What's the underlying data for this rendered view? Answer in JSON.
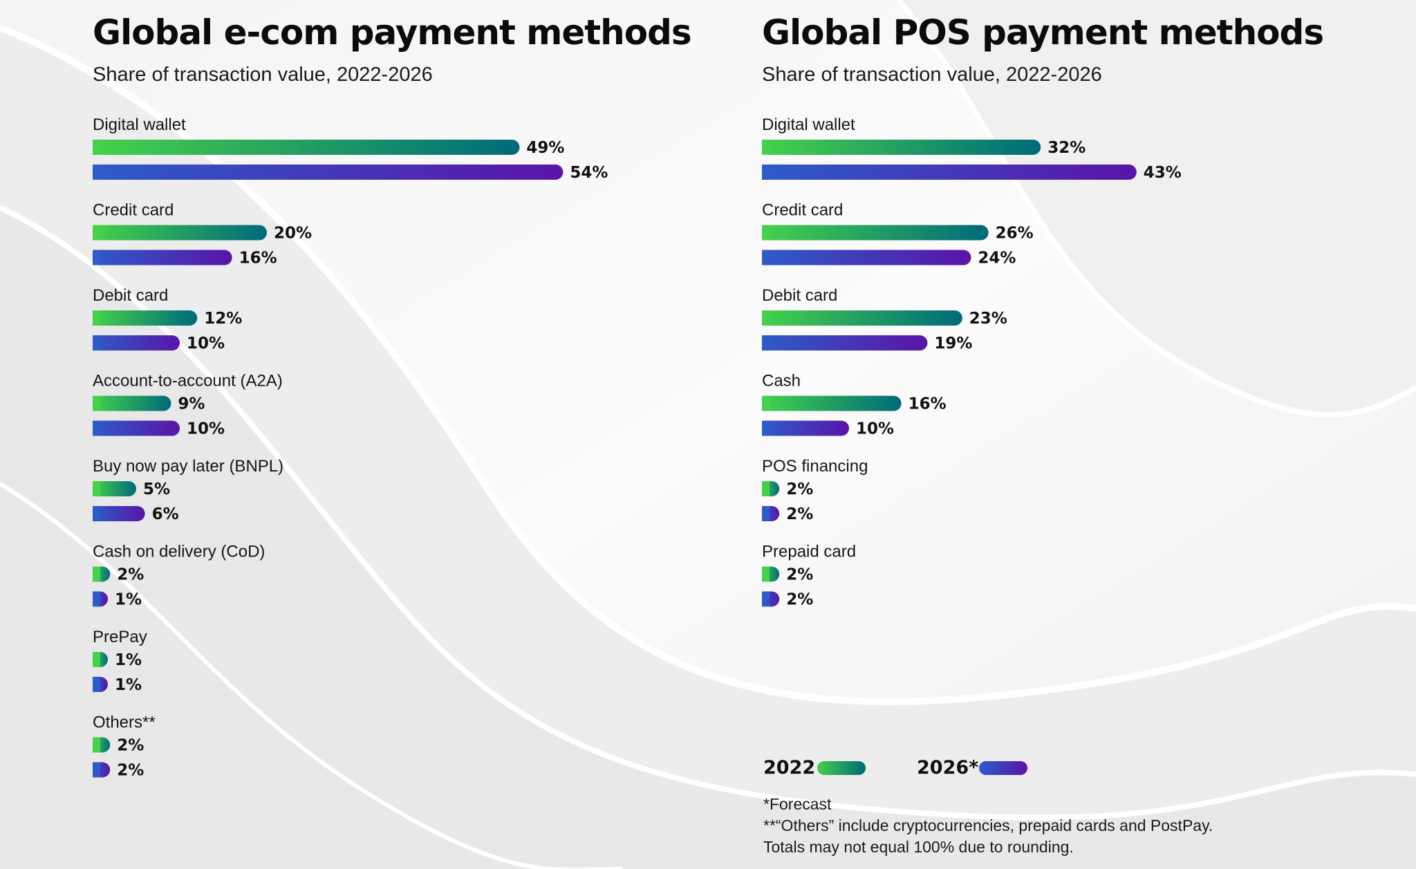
{
  "colors": {
    "y2022_start": "#45d14a",
    "y2022_end": "#006a7a",
    "y2026_start": "#2d5bc9",
    "y2026_end": "#5a14a8"
  },
  "legend": {
    "items": [
      {
        "label": "2022",
        "series": "2022"
      },
      {
        "label": "2026*",
        "series": "2026"
      }
    ]
  },
  "footnotes": [
    "*Forecast",
    "**“Others” include cryptocurrencies, prepaid cards and PostPay.",
    "Totals may not equal 100% due to rounding."
  ],
  "chart_data": [
    {
      "type": "bar",
      "orientation": "horizontal",
      "title": "Global e-com payment methods",
      "subtitle": "Share of transaction value, 2022-2026",
      "categories": [
        "Digital wallet",
        "Credit card",
        "Debit card",
        "Account-to-account (A2A)",
        "Buy now pay later (BNPL)",
        "Cash on delivery (CoD)",
        "PrePay",
        "Others**"
      ],
      "series": [
        {
          "name": "2022",
          "values": [
            49,
            20,
            12,
            9,
            5,
            2,
            1,
            2
          ],
          "labels": [
            "49%",
            "20%",
            "12%",
            "9%",
            "5%",
            "2%",
            "1%",
            "2%"
          ]
        },
        {
          "name": "2026*",
          "values": [
            54,
            16,
            10,
            10,
            6,
            1,
            1,
            2
          ],
          "labels": [
            "54%",
            "16%",
            "10%",
            "10%",
            "6%",
            "1%",
            "1%",
            "2%"
          ]
        }
      ],
      "unit": "%"
    },
    {
      "type": "bar",
      "orientation": "horizontal",
      "title": "Global POS payment methods",
      "subtitle": "Share of transaction value, 2022-2026",
      "categories": [
        "Digital wallet",
        "Credit card",
        "Debit card",
        "Cash",
        "POS financing",
        "Prepaid card"
      ],
      "series": [
        {
          "name": "2022",
          "values": [
            32,
            26,
            23,
            16,
            2,
            2
          ],
          "labels": [
            "32%",
            "26%",
            "23%",
            "16%",
            "2%",
            "2%"
          ]
        },
        {
          "name": "2026*",
          "values": [
            43,
            24,
            19,
            10,
            2,
            2
          ],
          "labels": [
            "43%",
            "24%",
            "19%",
            "10%",
            "2%",
            "2%"
          ]
        }
      ],
      "unit": "%"
    }
  ]
}
